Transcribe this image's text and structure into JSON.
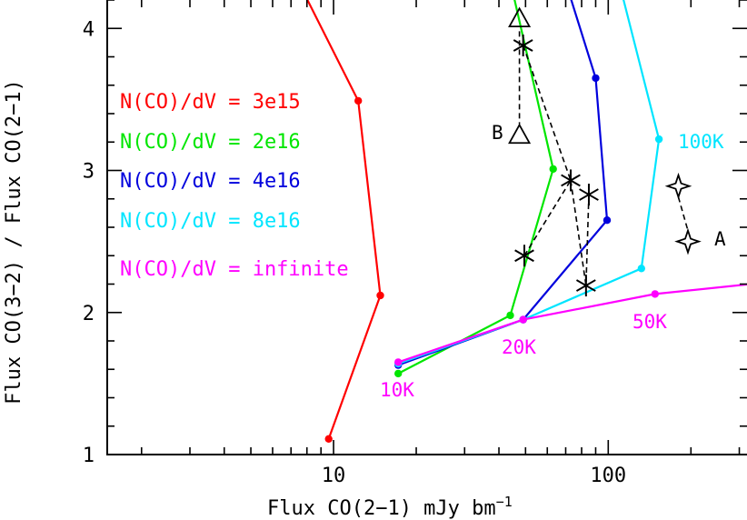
{
  "chart_data": {
    "type": "line",
    "xlabel": "Flux CO(2−1) mJy bm",
    "xlabel_sup": "−1",
    "ylabel": "Flux CO(3−2) / Flux CO(2−1)",
    "xscale": "log",
    "xlim": [
      1.5,
      320
    ],
    "ylim": [
      1.0,
      4.2
    ],
    "x_ticks": [
      {
        "value": 10,
        "label": "10"
      },
      {
        "value": 100,
        "label": "100"
      }
    ],
    "y_ticks": [
      {
        "value": 1,
        "label": "1"
      },
      {
        "value": 2,
        "label": "2"
      },
      {
        "value": 3,
        "label": "3"
      },
      {
        "value": 4,
        "label": "4"
      }
    ],
    "series": [
      {
        "name": "N(CO)/dV = 3e15",
        "color": "#ff0000",
        "points": [
          [
            9.6,
            1.11
          ],
          [
            14.8,
            2.12
          ],
          [
            12.3,
            3.49
          ],
          [
            7.8,
            4.25
          ]
        ]
      },
      {
        "name": "N(CO)/dV = 2e16",
        "color": "#00e600",
        "points": [
          [
            17.2,
            1.57
          ],
          [
            44.0,
            1.98
          ],
          [
            63.0,
            3.01
          ],
          [
            45.0,
            4.25
          ]
        ]
      },
      {
        "name": "N(CO)/dV = 4e16",
        "color": "#0000dd",
        "points": [
          [
            17.2,
            1.63
          ],
          [
            49.0,
            1.95
          ],
          [
            99.0,
            2.65
          ],
          [
            90.0,
            3.65
          ],
          [
            72.0,
            4.25
          ]
        ]
      },
      {
        "name": "N(CO)/dV = 8e16",
        "color": "#00e5ff",
        "points": [
          [
            17.2,
            1.64
          ],
          [
            49.0,
            1.95
          ],
          [
            132.0,
            2.31
          ],
          [
            153.0,
            3.22
          ],
          [
            112.0,
            4.25
          ]
        ]
      },
      {
        "name": "N(CO)/dV = infinite",
        "color": "#ff00ff",
        "points": [
          [
            17.2,
            1.65
          ],
          [
            49.0,
            1.95
          ],
          [
            148.0,
            2.13
          ],
          [
            330.0,
            2.2
          ]
        ]
      }
    ],
    "temperature_labels": [
      {
        "text": "10K",
        "color": "#ff00ff"
      },
      {
        "text": "20K",
        "color": "#ff00ff"
      },
      {
        "text": "50K",
        "color": "#ff00ff"
      },
      {
        "text": "100K",
        "color": "#00e5ff"
      }
    ],
    "asterisk_markers": [
      [
        49.0,
        3.88
      ],
      [
        49.5,
        2.4
      ],
      [
        73.0,
        2.93
      ],
      [
        85.0,
        2.83
      ],
      [
        83.0,
        2.19
      ]
    ],
    "asterisk_links": [
      [
        [
          49.0,
          3.88
        ],
        [
          73.0,
          2.93
        ]
      ],
      [
        [
          49.5,
          2.4
        ],
        [
          73.0,
          2.93
        ]
      ],
      [
        [
          73.0,
          2.93
        ],
        [
          83.0,
          2.19
        ]
      ],
      [
        [
          85.0,
          2.83
        ],
        [
          83.0,
          2.19
        ]
      ]
    ],
    "triangle_markers": [
      {
        "x": 47.5,
        "y": 4.07,
        "label": ""
      },
      {
        "x": 47.5,
        "y": 3.25,
        "label": "B"
      }
    ],
    "star4_markers": [
      {
        "x": 180.0,
        "y": 2.89,
        "label": ""
      },
      {
        "x": 195.0,
        "y": 2.5,
        "label": "A"
      }
    ],
    "grid": false,
    "legend_position": "left"
  }
}
